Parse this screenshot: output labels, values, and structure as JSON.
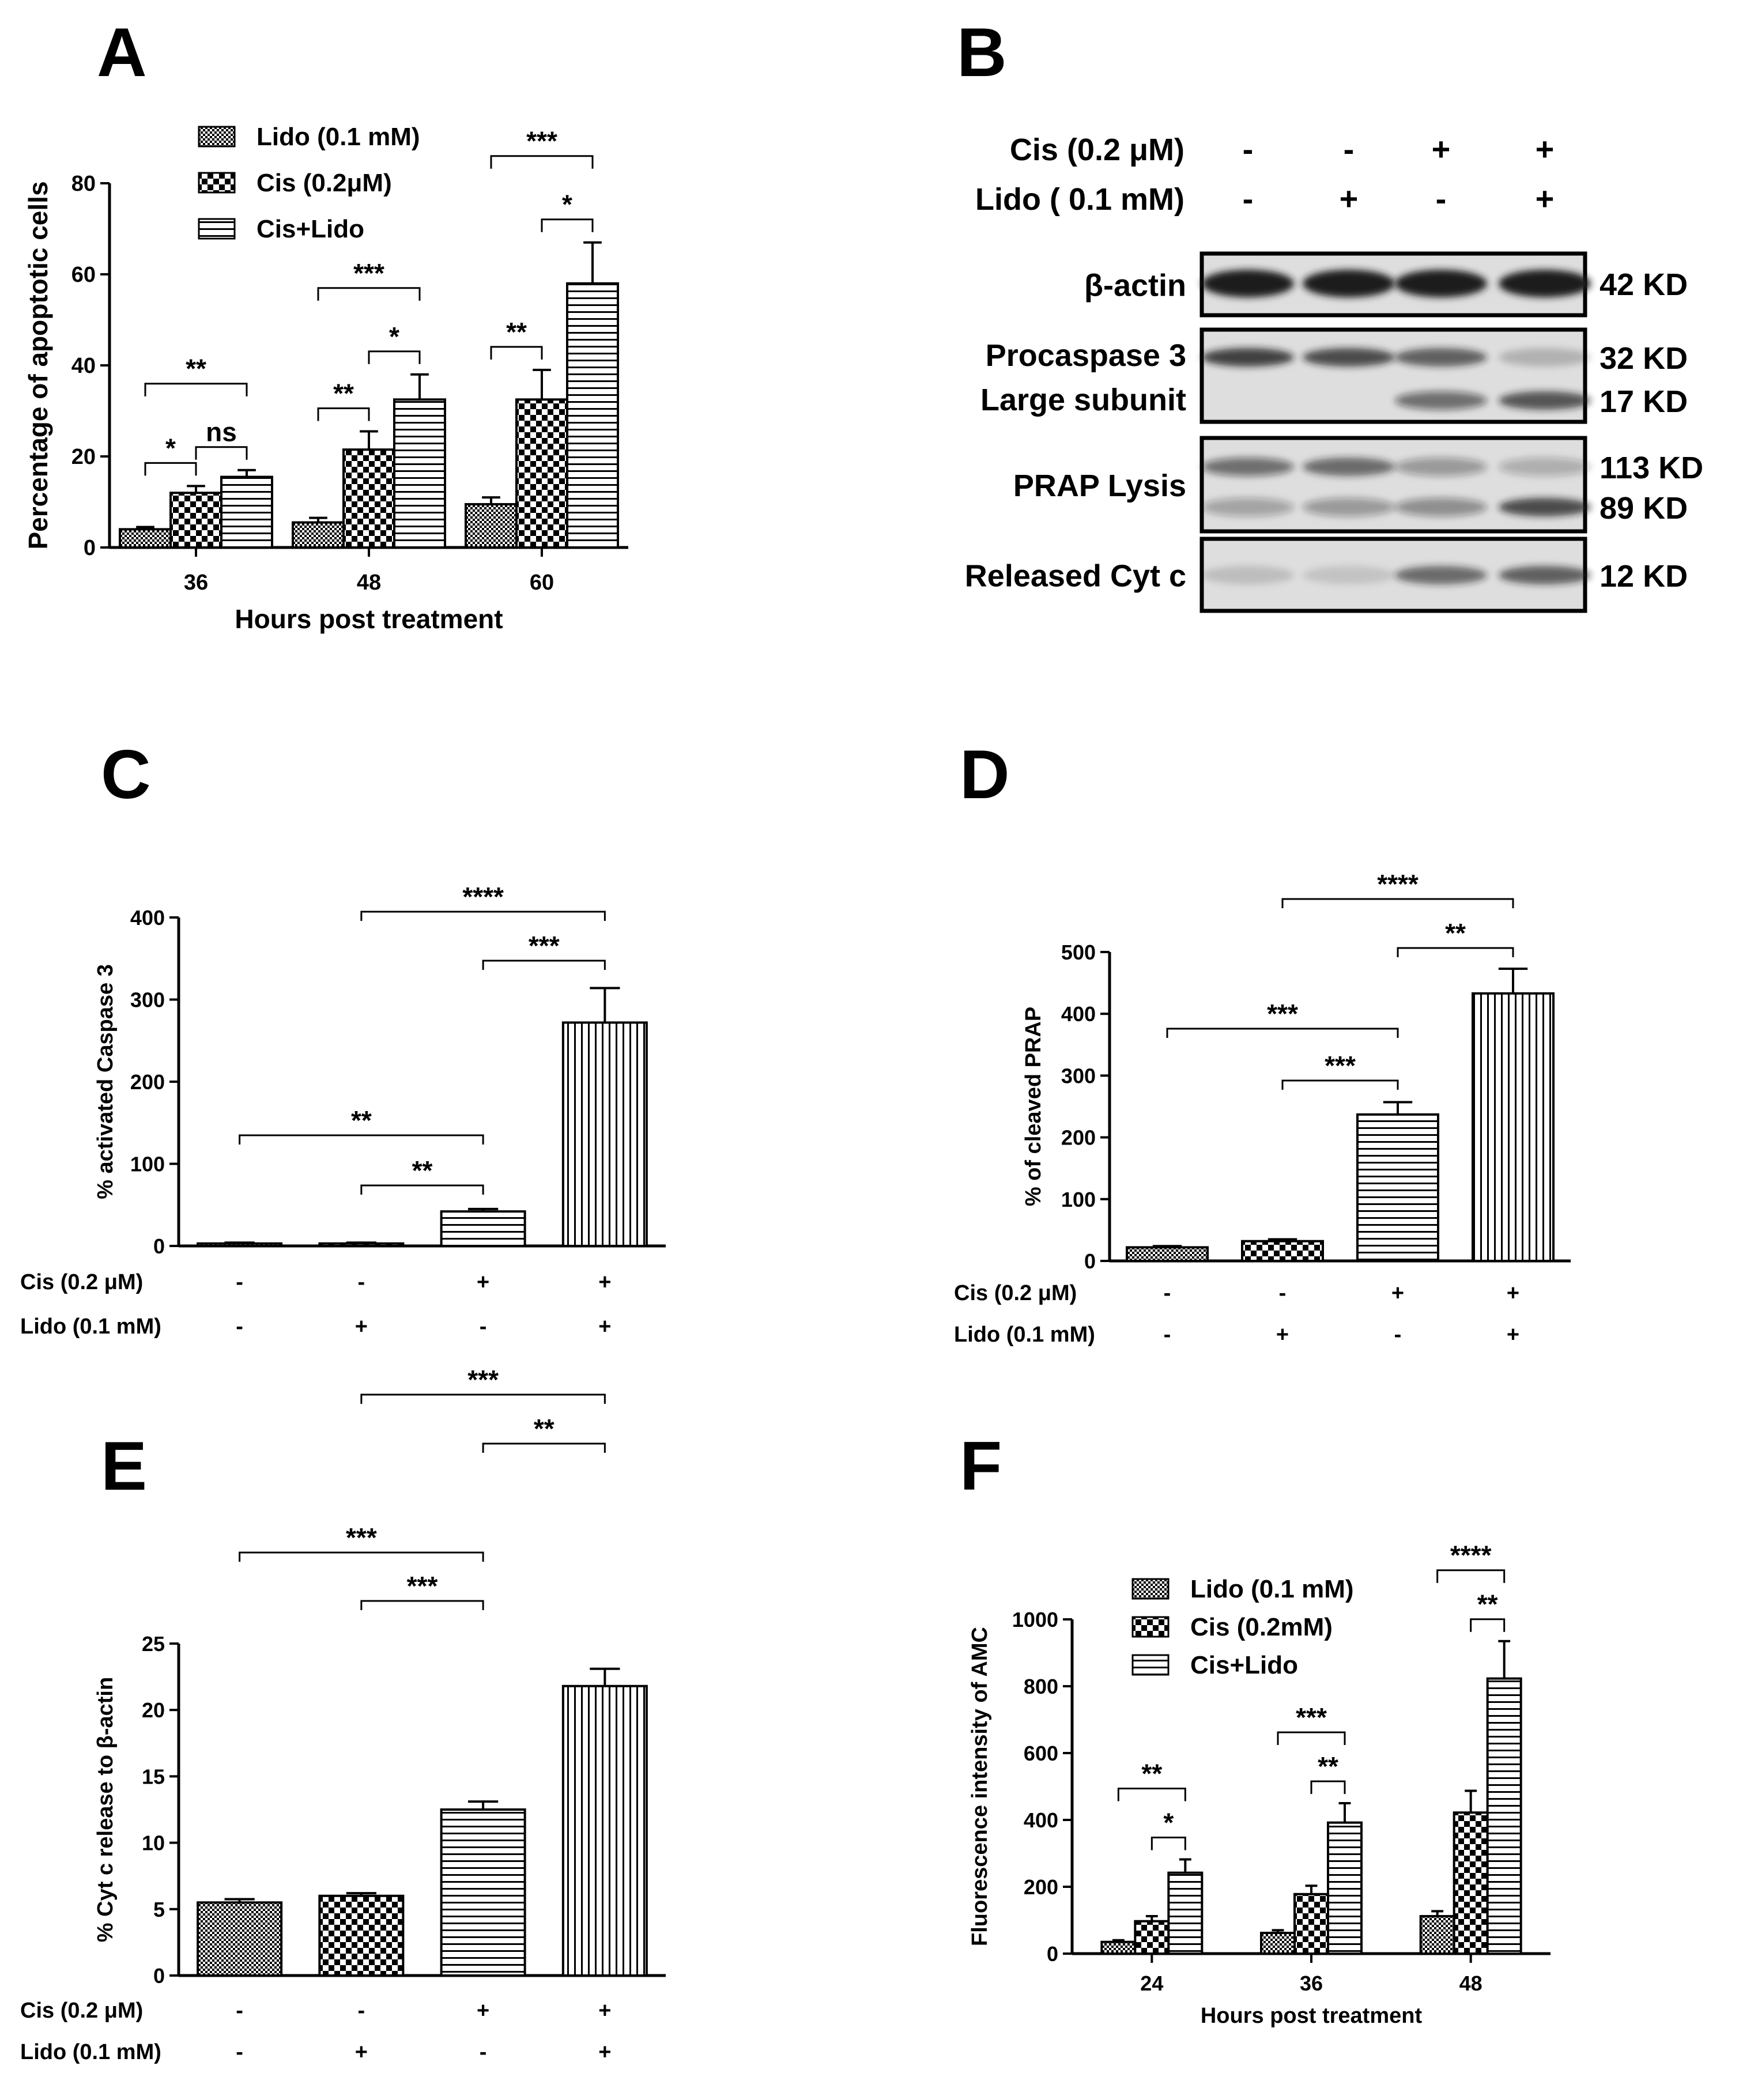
{
  "panel_labels": {
    "a": "A",
    "b": "B",
    "c": "C",
    "d": "D",
    "e": "E",
    "f": "F"
  },
  "colors": {
    "ink": "#000000",
    "paper": "#ffffff",
    "blot_bg": "#dedede",
    "band": "#1a1a1a"
  },
  "chart_data": [
    {
      "id": "A",
      "type": "bar",
      "title": "",
      "xlabel": "Hours post treatment",
      "ylabel": "Percentage of apoptotic cells",
      "ylim": [
        0,
        80
      ],
      "yticks": [
        "0",
        "20",
        "40",
        "60",
        "80"
      ],
      "categories": [
        "36",
        "48",
        "60"
      ],
      "legend_position": "top-left",
      "series": [
        {
          "name": "Lido (0.1 mM)",
          "pattern": "fine-check",
          "values": [
            4,
            5.5,
            9.5
          ],
          "errors": [
            0.5,
            1,
            1.5
          ]
        },
        {
          "name": "Cis (0.2μM)",
          "pattern": "checker",
          "values": [
            12,
            21.5,
            32.5
          ],
          "errors": [
            1.5,
            4,
            6.5
          ]
        },
        {
          "name": "Cis+Lido",
          "pattern": "hlines",
          "values": [
            15.5,
            32.5,
            58
          ],
          "errors": [
            1.5,
            5.5,
            9
          ]
        }
      ],
      "significance": [
        {
          "label": "*",
          "group": 0,
          "from": 0,
          "to": 1
        },
        {
          "label": "ns",
          "group": 0,
          "from": 1,
          "to": 2
        },
        {
          "label": "**",
          "group": 0,
          "from": 0,
          "to": 2
        },
        {
          "label": "**",
          "group": 1,
          "from": 0,
          "to": 1
        },
        {
          "label": "*",
          "group": 1,
          "from": 1,
          "to": 2
        },
        {
          "label": "***",
          "group": 1,
          "from": 0,
          "to": 2
        },
        {
          "label": "**",
          "group": 2,
          "from": 0,
          "to": 1
        },
        {
          "label": "*",
          "group": 2,
          "from": 1,
          "to": 2
        },
        {
          "label": "***",
          "group": 2,
          "from": 0,
          "to": 2
        }
      ]
    },
    {
      "id": "C",
      "type": "bar",
      "title": "",
      "xlabel": "",
      "ylabel": "% activated Caspase 3",
      "ylim": [
        0,
        400
      ],
      "yticks": [
        "0",
        "100",
        "200",
        "300",
        "400"
      ],
      "categories": [
        "1",
        "2",
        "3",
        "4"
      ],
      "row_labels": [
        "Cis (0.2  μM)",
        "Lido (0.1 mM)"
      ],
      "rows": [
        [
          "-",
          "-",
          "+",
          "+"
        ],
        [
          "-",
          "+",
          "-",
          "+"
        ]
      ],
      "patterns": [
        "fine-check",
        "checker",
        "hlines",
        "vlines"
      ],
      "values": [
        3,
        3,
        42,
        272
      ],
      "errors": [
        1,
        1,
        3,
        42
      ],
      "significance": [
        {
          "label": "**",
          "from": 1,
          "to": 2
        },
        {
          "label": "**",
          "from": 0,
          "to": 2
        },
        {
          "label": "***",
          "from": 2,
          "to": 3
        },
        {
          "label": "****",
          "from": 1,
          "to": 3
        }
      ]
    },
    {
      "id": "D",
      "type": "bar",
      "title": "",
      "xlabel": "",
      "ylabel": "% of cleaved PRAP",
      "ylim": [
        0,
        500
      ],
      "yticks": [
        "0",
        "100",
        "200",
        "300",
        "400",
        "500"
      ],
      "categories": [
        "1",
        "2",
        "3",
        "4"
      ],
      "row_labels": [
        "Cis (0.2  μM)",
        "Lido (0.1 mM)"
      ],
      "rows": [
        [
          "-",
          "-",
          "+",
          "+"
        ],
        [
          "-",
          "+",
          "-",
          "+"
        ]
      ],
      "patterns": [
        "fine-check",
        "checker",
        "hlines",
        "vlines"
      ],
      "values": [
        22,
        32,
        237,
        433
      ],
      "errors": [
        2,
        3,
        20,
        40
      ],
      "significance": [
        {
          "label": "***",
          "from": 1,
          "to": 2
        },
        {
          "label": "***",
          "from": 0,
          "to": 2
        },
        {
          "label": "**",
          "from": 2,
          "to": 3
        },
        {
          "label": "****",
          "from": 1,
          "to": 3
        }
      ]
    },
    {
      "id": "E",
      "type": "bar",
      "title": "",
      "xlabel": "",
      "ylabel": "% Cyt c release to  β-actin",
      "ylim": [
        0,
        25
      ],
      "yticks": [
        "0",
        "5",
        "10",
        "15",
        "20",
        "25"
      ],
      "categories": [
        "1",
        "2",
        "3",
        "4"
      ],
      "row_labels": [
        "Cis (0.2  μM)",
        "Lido (0.1 mM)"
      ],
      "rows": [
        [
          "-",
          "-",
          "+",
          "+"
        ],
        [
          "-",
          "+",
          "-",
          "+"
        ]
      ],
      "patterns": [
        "fine-check",
        "checker",
        "hlines",
        "vlines"
      ],
      "values": [
        5.5,
        6,
        12.5,
        21.8
      ],
      "errors": [
        0.25,
        0.2,
        0.6,
        1.3
      ],
      "significance": [
        {
          "label": "***",
          "from": 1,
          "to": 2
        },
        {
          "label": "***",
          "from": 0,
          "to": 2
        },
        {
          "label": "**",
          "from": 2,
          "to": 3
        },
        {
          "label": "***",
          "from": 1,
          "to": 3
        }
      ]
    },
    {
      "id": "F",
      "type": "bar",
      "title": "",
      "xlabel": "Hours post treatment",
      "ylabel": "Fluorescence intensity of AMC",
      "ylim": [
        0,
        1000
      ],
      "yticks": [
        "0",
        "200",
        "400",
        "600",
        "800",
        "1000"
      ],
      "categories": [
        "24",
        "36",
        "48"
      ],
      "legend_position": "top-left",
      "series": [
        {
          "name": "Lido (0.1 mM)",
          "pattern": "fine-check",
          "values": [
            35,
            62,
            112
          ],
          "errors": [
            5,
            8,
            15
          ]
        },
        {
          "name": "Cis (0.2mM)",
          "pattern": "checker",
          "values": [
            97,
            178,
            422
          ],
          "errors": [
            15,
            25,
            65
          ]
        },
        {
          "name": "Cis+Lido",
          "pattern": "hlines",
          "values": [
            242,
            392,
            823
          ],
          "errors": [
            40,
            58,
            112
          ]
        }
      ],
      "significance": [
        {
          "label": "*",
          "group": 0,
          "from": 1,
          "to": 2
        },
        {
          "label": "**",
          "group": 0,
          "from": 0,
          "to": 2
        },
        {
          "label": "**",
          "group": 1,
          "from": 1,
          "to": 2
        },
        {
          "label": "***",
          "group": 1,
          "from": 0,
          "to": 2
        },
        {
          "label": "**",
          "group": 2,
          "from": 1,
          "to": 2
        },
        {
          "label": "****",
          "group": 2,
          "from": 0,
          "to": 2
        }
      ]
    }
  ],
  "blot": {
    "conditions": [
      {
        "label": "Cis (0.2 μM)",
        "signs": [
          "-",
          "-",
          "+",
          "+"
        ]
      },
      {
        "label": "Lido ( 0.1 mM)",
        "signs": [
          "-",
          "+",
          "-",
          "+"
        ]
      }
    ],
    "rows": [
      {
        "name": "β-actin",
        "sizes": [
          "42 KD"
        ],
        "bands": [
          [
            1.0,
            1.0,
            1.0,
            1.0
          ]
        ]
      },
      {
        "name": "Procaspase 3",
        "name2": "Large subunit",
        "sizes": [
          "32 KD",
          "17 KD"
        ],
        "bands": [
          [
            0.8,
            0.75,
            0.65,
            0.2
          ],
          [
            0.0,
            0.0,
            0.55,
            0.7
          ]
        ]
      },
      {
        "name": "PRAP Lysis",
        "sizes": [
          "113 KD",
          "89 KD"
        ],
        "bands": [
          [
            0.55,
            0.6,
            0.35,
            0.25
          ],
          [
            0.3,
            0.35,
            0.4,
            0.75
          ]
        ]
      },
      {
        "name": "Released Cyt c",
        "sizes": [
          "12 KD"
        ],
        "bands": [
          [
            0.15,
            0.12,
            0.6,
            0.65
          ]
        ]
      }
    ]
  }
}
